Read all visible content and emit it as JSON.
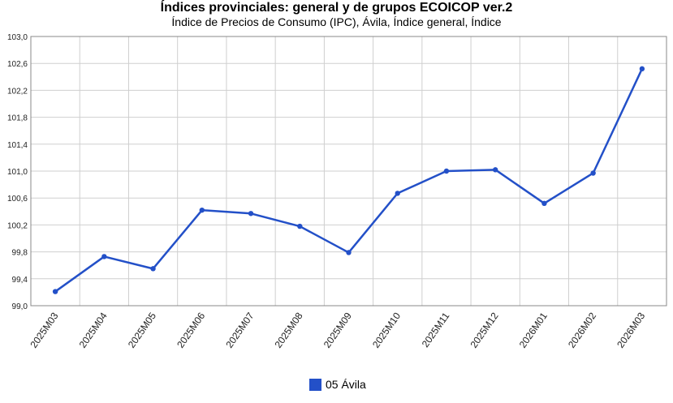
{
  "chart_data": {
    "type": "line",
    "title": "Índices provinciales: general y de grupos ECOICOP ver.2",
    "subtitle": "Índice de Precios de Consumo (IPC), Ávila, Índice general, Índice",
    "categories": [
      "2025M03",
      "2025M04",
      "2025M05",
      "2025M06",
      "2025M07",
      "2025M08",
      "2025M09",
      "2025M10",
      "2025M11",
      "2025M12",
      "2026M01",
      "2026M02",
      "2026M03"
    ],
    "series": [
      {
        "name": "05 Ávila",
        "color": "#2350c8",
        "values": [
          99.21,
          99.73,
          99.55,
          100.42,
          100.37,
          100.18,
          99.79,
          100.67,
          101.0,
          101.02,
          100.52,
          100.97,
          102.52
        ]
      }
    ],
    "ylim": [
      99.0,
      103.0
    ],
    "yticks": [
      "99,0",
      "99,4",
      "99,8",
      "100,2",
      "100,6",
      "101,0",
      "101,4",
      "101,8",
      "102,2",
      "102,6",
      "103,0"
    ],
    "grid": true,
    "legend_position": "bottom"
  }
}
